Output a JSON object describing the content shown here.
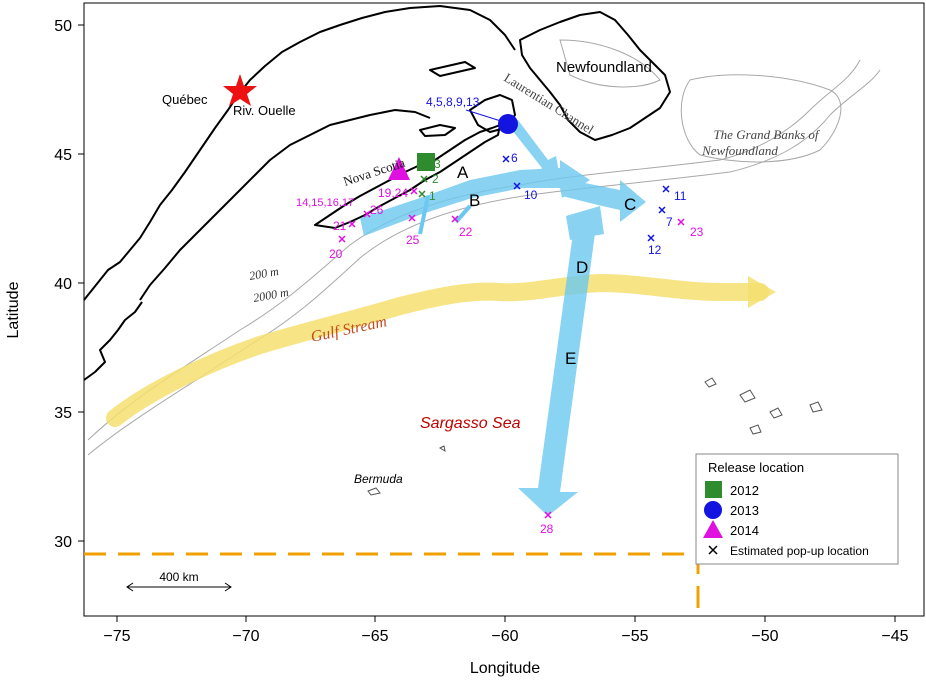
{
  "axes": {
    "xlabel": "Longitude",
    "ylabel": "Latitude",
    "xticks": [
      "−75",
      "−70",
      "−65",
      "−60",
      "−55",
      "−50",
      "−45"
    ],
    "yticks": [
      "50",
      "45",
      "40",
      "35",
      "30"
    ]
  },
  "places": {
    "quebec": "Québec",
    "riv_ouelle": "Riv. Ouelle",
    "newfoundland": "Newfoundland",
    "laurentian": "Laurentian Channel",
    "grand_banks_1": "The Grand Banks of",
    "grand_banks_2": "Newfoundland",
    "nova_scotia": "Nova Scotia",
    "gulf_stream": "Gulf Stream",
    "sargasso": "Sargasso Sea",
    "bermuda": "Bermuda",
    "iso200": "200 m",
    "iso2000": "2000 m"
  },
  "routes": [
    "A",
    "B",
    "C",
    "D",
    "E"
  ],
  "popups": {
    "t4_13": "4,5,8,9,13",
    "t3": "3",
    "t2": "2",
    "t1": "1",
    "t19_24": "19,24",
    "t14_17": "14,15,16,17",
    "t26": "26",
    "t21": "21",
    "t20": "20",
    "t25": "25",
    "t22": "22",
    "t6": "6",
    "t10": "10",
    "t11": "11",
    "t7": "7",
    "t23": "23",
    "t12": "12",
    "t28": "28"
  },
  "scale_bar": "400 km",
  "legend": {
    "title": "Release location",
    "y2012": "2012",
    "y2013": "2013",
    "y2014": "2014",
    "popup": "Estimated pop-up location"
  },
  "colors": {
    "y2012": "#2e8b2e",
    "y2013": "#1414e0",
    "y2014": "#e010e0",
    "arrow": "#6cc8f0",
    "gulf": "#f5df70",
    "dashed": "#f0a000"
  }
}
